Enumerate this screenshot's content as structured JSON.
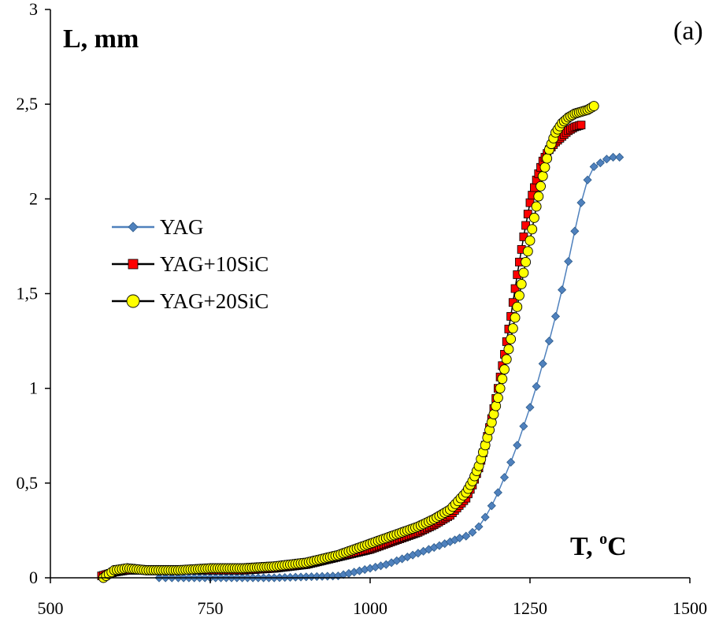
{
  "chart_data": {
    "type": "scatter",
    "title": "",
    "panel_label": "(a)",
    "ylabel": "L, mm",
    "xlabel_main": "T, ",
    "xlabel_sup": "o",
    "xlabel_unit": "C",
    "xlim": [
      500,
      1500
    ],
    "ylim": [
      0,
      3
    ],
    "x_ticks": [
      500,
      750,
      1000,
      1250,
      1500
    ],
    "x_tick_labels": [
      "500",
      "750",
      "1000",
      "1250",
      "1500"
    ],
    "y_ticks": [
      0,
      0.5,
      1,
      1.5,
      2,
      2.5,
      3
    ],
    "y_tick_labels": [
      "0",
      "0,5",
      "1",
      "1,5",
      "2",
      "2,5",
      "3"
    ],
    "legend_position": "left-middle",
    "series": [
      {
        "name": "YAG",
        "color": "#4F81BD",
        "marker": "diamond",
        "x": [
          670,
          700,
          750,
          800,
          850,
          900,
          950,
          975,
          1000,
          1025,
          1050,
          1075,
          1100,
          1125,
          1140,
          1150,
          1160,
          1170,
          1180,
          1190,
          1200,
          1210,
          1220,
          1230,
          1240,
          1250,
          1260,
          1270,
          1280,
          1290,
          1300,
          1310,
          1320,
          1330,
          1340,
          1350,
          1360,
          1370,
          1380,
          1390
        ],
        "y": [
          0,
          0,
          0,
          0,
          0,
          0.005,
          0.01,
          0.03,
          0.05,
          0.07,
          0.1,
          0.13,
          0.16,
          0.19,
          0.21,
          0.22,
          0.24,
          0.27,
          0.32,
          0.38,
          0.45,
          0.53,
          0.61,
          0.7,
          0.8,
          0.9,
          1.01,
          1.13,
          1.25,
          1.38,
          1.52,
          1.67,
          1.83,
          1.98,
          2.1,
          2.17,
          2.19,
          2.21,
          2.22,
          2.22
        ]
      },
      {
        "name": "YAG+10SiC",
        "color": "#FF0000",
        "marker": "square",
        "x": [
          580,
          600,
          620,
          650,
          700,
          750,
          800,
          850,
          875,
          900,
          925,
          950,
          975,
          1000,
          1025,
          1050,
          1075,
          1100,
          1125,
          1150,
          1160,
          1170,
          1180,
          1190,
          1200,
          1210,
          1220,
          1230,
          1240,
          1250,
          1260,
          1270,
          1280,
          1290,
          1300,
          1310,
          1320,
          1330
        ],
        "y": [
          0.01,
          0.03,
          0.04,
          0.04,
          0.04,
          0.04,
          0.04,
          0.05,
          0.06,
          0.07,
          0.09,
          0.11,
          0.13,
          0.15,
          0.18,
          0.21,
          0.24,
          0.28,
          0.33,
          0.42,
          0.49,
          0.58,
          0.7,
          0.84,
          1.0,
          1.18,
          1.38,
          1.6,
          1.8,
          1.98,
          2.1,
          2.2,
          2.26,
          2.3,
          2.33,
          2.36,
          2.38,
          2.39
        ]
      },
      {
        "name": "YAG+20SiC",
        "color": "#FFFF00",
        "marker": "circle",
        "x": [
          583,
          600,
          620,
          650,
          700,
          750,
          800,
          850,
          875,
          900,
          925,
          950,
          975,
          1000,
          1025,
          1050,
          1075,
          1100,
          1125,
          1150,
          1160,
          1170,
          1180,
          1190,
          1200,
          1210,
          1220,
          1230,
          1240,
          1250,
          1260,
          1270,
          1280,
          1290,
          1300,
          1310,
          1320,
          1330,
          1340,
          1350
        ],
        "y": [
          0,
          0.04,
          0.05,
          0.04,
          0.04,
          0.05,
          0.05,
          0.06,
          0.07,
          0.08,
          0.1,
          0.12,
          0.15,
          0.18,
          0.21,
          0.24,
          0.27,
          0.31,
          0.36,
          0.45,
          0.51,
          0.59,
          0.7,
          0.82,
          0.95,
          1.1,
          1.26,
          1.43,
          1.61,
          1.78,
          1.96,
          2.12,
          2.26,
          2.35,
          2.4,
          2.43,
          2.45,
          2.46,
          2.47,
          2.49
        ]
      }
    ]
  }
}
